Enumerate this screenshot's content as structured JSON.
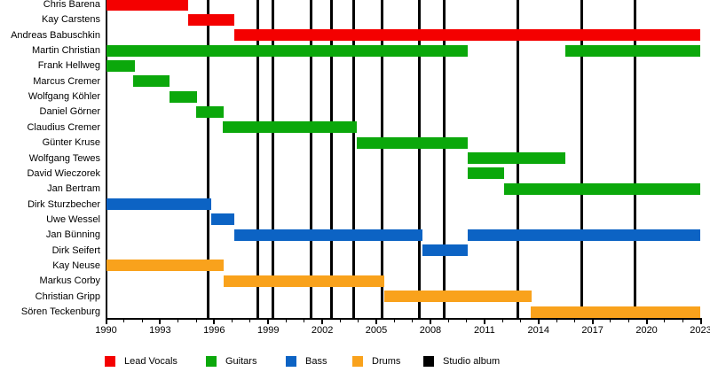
{
  "chart_data": {
    "type": "timeline",
    "x_axis": {
      "start": 1990,
      "end": 2023,
      "major_tick_step": 3,
      "minor_tick_step": 1,
      "tick_labels": [
        "1990",
        "1993",
        "1996",
        "1999",
        "2002",
        "2005",
        "2008",
        "2011",
        "2014",
        "2017",
        "2020",
        "2023"
      ]
    },
    "legend": [
      {
        "label": "Lead Vocals",
        "color": "#f40000"
      },
      {
        "label": "Guitars",
        "color": "#0ba80b"
      },
      {
        "label": "Bass",
        "color": "#0c63c4"
      },
      {
        "label": "Drums",
        "color": "#f9a21c"
      },
      {
        "label": "Studio album",
        "color": "#000000"
      }
    ],
    "album_release_years": [
      1995.65,
      1998.4,
      1999.25,
      2001.4,
      2002.5,
      2003.75,
      2005.3,
      2007.4,
      2008.75,
      2012.85,
      2016.4,
      2019.35
    ],
    "members": [
      {
        "name": "Chris Barena",
        "role": "Lead Vocals",
        "segments": [
          [
            1990,
            1994.55
          ]
        ]
      },
      {
        "name": "Kay Carstens",
        "role": "Lead Vocals",
        "segments": [
          [
            1994.55,
            1997.1
          ]
        ]
      },
      {
        "name": "Andreas Babuschkin",
        "role": "Lead Vocals",
        "segments": [
          [
            1997.1,
            2023
          ]
        ]
      },
      {
        "name": "Martin Christian",
        "role": "Guitars",
        "segments": [
          [
            1990,
            2010.05
          ],
          [
            2015.5,
            2023
          ]
        ]
      },
      {
        "name": "Frank Hellweg",
        "role": "Guitars",
        "segments": [
          [
            1990,
            1991.6
          ]
        ]
      },
      {
        "name": "Marcus Cremer",
        "role": "Guitars",
        "segments": [
          [
            1991.5,
            1993.5
          ]
        ]
      },
      {
        "name": "Wolfgang Köhler",
        "role": "Guitars",
        "segments": [
          [
            1993.5,
            1995.05
          ]
        ]
      },
      {
        "name": "Daniel Görner",
        "role": "Guitars",
        "segments": [
          [
            1995.0,
            1996.55
          ]
        ]
      },
      {
        "name": "Claudius Cremer",
        "role": "Guitars",
        "segments": [
          [
            1996.5,
            2003.9
          ]
        ]
      },
      {
        "name": "Günter Kruse",
        "role": "Guitars",
        "segments": [
          [
            2003.9,
            2010.05
          ]
        ]
      },
      {
        "name": "Wolfgang Tewes",
        "role": "Guitars",
        "segments": [
          [
            2010.05,
            2015.5
          ]
        ]
      },
      {
        "name": "David Wieczorek",
        "role": "Guitars",
        "segments": [
          [
            2010.05,
            2012.1
          ]
        ]
      },
      {
        "name": "Jan Bertram",
        "role": "Guitars",
        "segments": [
          [
            2012.1,
            2023
          ]
        ]
      },
      {
        "name": "Dirk Sturzbecher",
        "role": "Bass",
        "segments": [
          [
            1990,
            1995.85
          ]
        ]
      },
      {
        "name": "Uwe Wessel",
        "role": "Bass",
        "segments": [
          [
            1995.85,
            1997.1
          ]
        ]
      },
      {
        "name": "Jan Bünning",
        "role": "Bass",
        "segments": [
          [
            1997.1,
            2007.55
          ],
          [
            2010.05,
            2023
          ]
        ]
      },
      {
        "name": "Dirk Seifert",
        "role": "Bass",
        "segments": [
          [
            2007.55,
            2010.05
          ]
        ]
      },
      {
        "name": "Kay Neuse",
        "role": "Drums",
        "segments": [
          [
            1990,
            1996.55
          ]
        ]
      },
      {
        "name": "Markus Corby",
        "role": "Drums",
        "segments": [
          [
            1996.55,
            2005.45
          ]
        ]
      },
      {
        "name": "Christian Gripp",
        "role": "Drums",
        "segments": [
          [
            2005.45,
            2013.6
          ]
        ]
      },
      {
        "name": "Sören Teckenburg",
        "role": "Drums",
        "segments": [
          [
            2013.55,
            2023
          ]
        ]
      }
    ]
  }
}
